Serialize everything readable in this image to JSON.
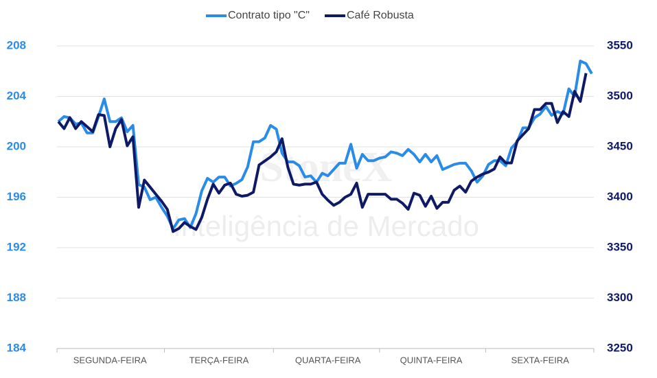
{
  "chart_data": {
    "type": "line",
    "watermark": [
      "StoneX",
      "Inteligência de Mercado"
    ],
    "categories": [
      null,
      null,
      null,
      null,
      null,
      null,
      null,
      null,
      null,
      "SEGUNDA-FEIRA",
      null,
      null,
      null,
      null,
      null,
      null,
      null,
      null,
      null,
      null,
      null,
      null,
      null,
      null,
      null,
      null,
      null,
      null,
      "TERÇA-FEIRA",
      null,
      null,
      null,
      null,
      null,
      null,
      null,
      null,
      null,
      null,
      null,
      null,
      null,
      null,
      null,
      null,
      null,
      null,
      "QUARTA-FEIRA",
      null,
      null,
      null,
      null,
      null,
      null,
      null,
      null,
      null,
      null,
      null,
      null,
      null,
      null,
      null,
      null,
      null,
      "QUINTA-FEIRA",
      null,
      null,
      null,
      null,
      null,
      null,
      null,
      null,
      null,
      null,
      null,
      null,
      null,
      null,
      null,
      null,
      null,
      null,
      "SEXTA-FEIRA",
      null,
      null,
      null,
      null,
      null,
      null,
      null,
      null,
      null
    ],
    "series": [
      {
        "name": "Contrato tipo \"C\"",
        "color": "#2a8ce6",
        "axis": "y",
        "values": [
          202,
          202.4,
          202.3,
          201.8,
          201.9,
          201.1,
          201.1,
          202.4,
          203.8,
          202,
          202,
          202.3,
          201.2,
          201.7,
          197,
          196.8,
          195.8,
          196,
          195.2,
          194.5,
          193.5,
          194.2,
          194.3,
          193.6,
          194.7,
          196.5,
          197.5,
          197.2,
          197.6,
          197.6,
          196.9,
          197.1,
          197.4,
          198.4,
          200.4,
          200.4,
          200.7,
          201.7,
          201.4,
          199.5,
          198.8,
          198.8,
          198.5,
          197.6,
          197.7,
          197.2,
          197.9,
          197.7,
          198.2,
          198.7,
          198.7,
          200.2,
          198.3,
          199.4,
          198.9,
          198.9,
          199.1,
          199.2,
          199.6,
          199.5,
          199.3,
          199.8,
          199.4,
          198.8,
          199.4,
          198.8,
          199.3,
          198.2,
          198.4,
          198.6,
          198.7,
          198.7,
          198.1,
          197.2,
          197.7,
          198.6,
          198.9,
          198.9,
          198.5,
          199.9,
          200.4,
          201.5,
          201.5,
          202.3,
          202.6,
          203.2,
          202.5,
          202.8,
          202.6,
          204.6,
          204,
          206.8,
          206.6,
          205.8
        ]
      },
      {
        "name": "Café Robusta",
        "color": "#0f1a66",
        "axis": "y2",
        "values": [
          3475,
          3468,
          3479,
          3468,
          3475,
          3470,
          3465,
          3482,
          3481,
          3450,
          3468,
          3477,
          3451,
          3460,
          3390,
          3417,
          3410,
          3403,
          3396,
          3388,
          3366,
          3369,
          3375,
          3371,
          3368,
          3380,
          3398,
          3413,
          3404,
          3412,
          3414,
          3403,
          3401,
          3402,
          3405,
          3432,
          3436,
          3440,
          3445,
          3458,
          3430,
          3413,
          3412,
          3413,
          3413,
          3415,
          3403,
          3397,
          3392,
          3395,
          3400,
          3403,
          3414,
          3390,
          3403,
          3403,
          3403,
          3403,
          3398,
          3398,
          3394,
          3388,
          3404,
          3402,
          3391,
          3401,
          3389,
          3395,
          3395,
          3407,
          3411,
          3405,
          3416,
          3420,
          3423,
          3425,
          3428,
          3440,
          3434,
          3434,
          3456,
          3462,
          3468,
          3487,
          3487,
          3493,
          3493,
          3474,
          3485,
          3480,
          3505,
          3495,
          3523,
          null
        ]
      }
    ],
    "ylim": [
      184,
      208
    ],
    "yticks": [
      184,
      188,
      192,
      196,
      200,
      204,
      208
    ],
    "y2lim": [
      3250,
      3550
    ],
    "y2ticks": [
      3250,
      3300,
      3350,
      3400,
      3450,
      3500,
      3550
    ],
    "grid": true,
    "legend": "top"
  }
}
